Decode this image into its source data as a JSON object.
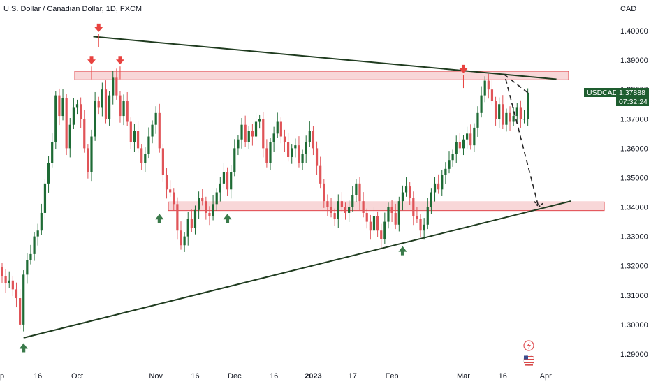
{
  "header": {
    "title": "U.S. Dollar / Canadian Dollar, 1D, FXCM",
    "currency": "CAD"
  },
  "price_tag": {
    "symbol": "USDCAD",
    "price": "1.37888",
    "countdown": "07:32:24",
    "color": "#1e5d2f"
  },
  "colors": {
    "up": "#1e6b35",
    "down": "#e05458",
    "zone_fill": "#f6c9cb",
    "zone_stroke": "#e0454a",
    "trendline": "#1f3b1f",
    "arrow_down": "#e8423f",
    "arrow_up": "#3a7a4a"
  },
  "chart_data": {
    "type": "candlestick",
    "title": "U.S. Dollar / Canadian Dollar, 1D, FXCM",
    "y_axis_unit": "CAD",
    "ylim": [
      1.2875,
      1.4075
    ],
    "y_ticks": [
      "1.40000",
      "1.39000",
      "1.38000",
      "1.37000",
      "1.36000",
      "1.35000",
      "1.34000",
      "1.33000",
      "1.32000",
      "1.31000",
      "1.30000",
      "1.29000"
    ],
    "x_ticks": [
      {
        "label": "p",
        "bar": -0.5
      },
      {
        "label": "16",
        "bar": 10
      },
      {
        "label": "Oct",
        "bar": 21
      },
      {
        "label": "Nov",
        "bar": 43
      },
      {
        "label": "16",
        "bar": 54
      },
      {
        "label": "Dec",
        "bar": 65
      },
      {
        "label": "16",
        "bar": 76
      },
      {
        "label": "2023",
        "bar": 87,
        "bold": true
      },
      {
        "label": "17",
        "bar": 98
      },
      {
        "label": "Feb",
        "bar": 109
      },
      {
        "label": "Mar",
        "bar": 129
      },
      {
        "label": "16",
        "bar": 140
      },
      {
        "label": "Apr",
        "bar": 152
      }
    ],
    "closes": [
      1.3165,
      1.314,
      1.315,
      1.312,
      1.309,
      1.3,
      1.317,
      1.322,
      1.324,
      1.33,
      1.332,
      1.338,
      1.348,
      1.355,
      1.362,
      1.378,
      1.371,
      1.377,
      1.36,
      1.368,
      1.374,
      1.375,
      1.37,
      1.36,
      1.352,
      1.364,
      1.376,
      1.374,
      1.38,
      1.37,
      1.378,
      1.384,
      1.378,
      1.371,
      1.376,
      1.369,
      1.362,
      1.366,
      1.36,
      1.355,
      1.358,
      1.364,
      1.368,
      1.372,
      1.36,
      1.351,
      1.346,
      1.345,
      1.341,
      1.332,
      1.327,
      1.33,
      1.336,
      1.333,
      1.339,
      1.343,
      1.342,
      1.338,
      1.337,
      1.341,
      1.345,
      1.348,
      1.352,
      1.346,
      1.352,
      1.36,
      1.363,
      1.368,
      1.362,
      1.366,
      1.364,
      1.369,
      1.37,
      1.36,
      1.355,
      1.362,
      1.365,
      1.369,
      1.364,
      1.362,
      1.357,
      1.36,
      1.361,
      1.355,
      1.358,
      1.362,
      1.366,
      1.36,
      1.354,
      1.348,
      1.342,
      1.34,
      1.338,
      1.336,
      1.342,
      1.34,
      1.338,
      1.34,
      1.344,
      1.348,
      1.342,
      1.338,
      1.335,
      1.332,
      1.337,
      1.332,
      1.329,
      1.335,
      1.34,
      1.338,
      1.334,
      1.342,
      1.345,
      1.347,
      1.343,
      1.337,
      1.336,
      1.332,
      1.334,
      1.34,
      1.345,
      1.348,
      1.346,
      1.351,
      1.353,
      1.356,
      1.358,
      1.362,
      1.36,
      1.363,
      1.365,
      1.361,
      1.367,
      1.372,
      1.378,
      1.383,
      1.38,
      1.376,
      1.37,
      1.375,
      1.368,
      1.372,
      1.369,
      1.371,
      1.374,
      1.37,
      1.37,
      1.3789
    ],
    "annotations": {
      "resistance_zone": [
        1.384,
        1.3855
      ],
      "support_zone": [
        1.3395,
        1.341
      ],
      "upper_trendline": [
        {
          "bar": 25.5,
          "price": 1.398
        },
        {
          "bar": 155,
          "price": 1.3835
        }
      ],
      "lower_trendline": [
        {
          "bar": 6,
          "price": 1.2955
        },
        {
          "bar": 159,
          "price": 1.342
        }
      ],
      "projection_path": [
        {
          "bar": 140.5,
          "price": 1.385
        },
        {
          "bar": 150,
          "price": 1.34
        }
      ],
      "down_arrows": [
        {
          "bar": 27,
          "price": 1.4005
        },
        {
          "bar": 25,
          "price": 1.3895
        },
        {
          "bar": 33,
          "price": 1.3895
        },
        {
          "bar": 129,
          "price": 1.3865
        }
      ],
      "up_arrows": [
        {
          "bar": 6,
          "price": 1.2925
        },
        {
          "bar": 44,
          "price": 1.3365
        },
        {
          "bar": 63,
          "price": 1.3365
        },
        {
          "bar": 112,
          "price": 1.3255
        }
      ]
    }
  },
  "icons": {
    "flash": "lightning-icon",
    "flag": "us-flag-icon"
  }
}
